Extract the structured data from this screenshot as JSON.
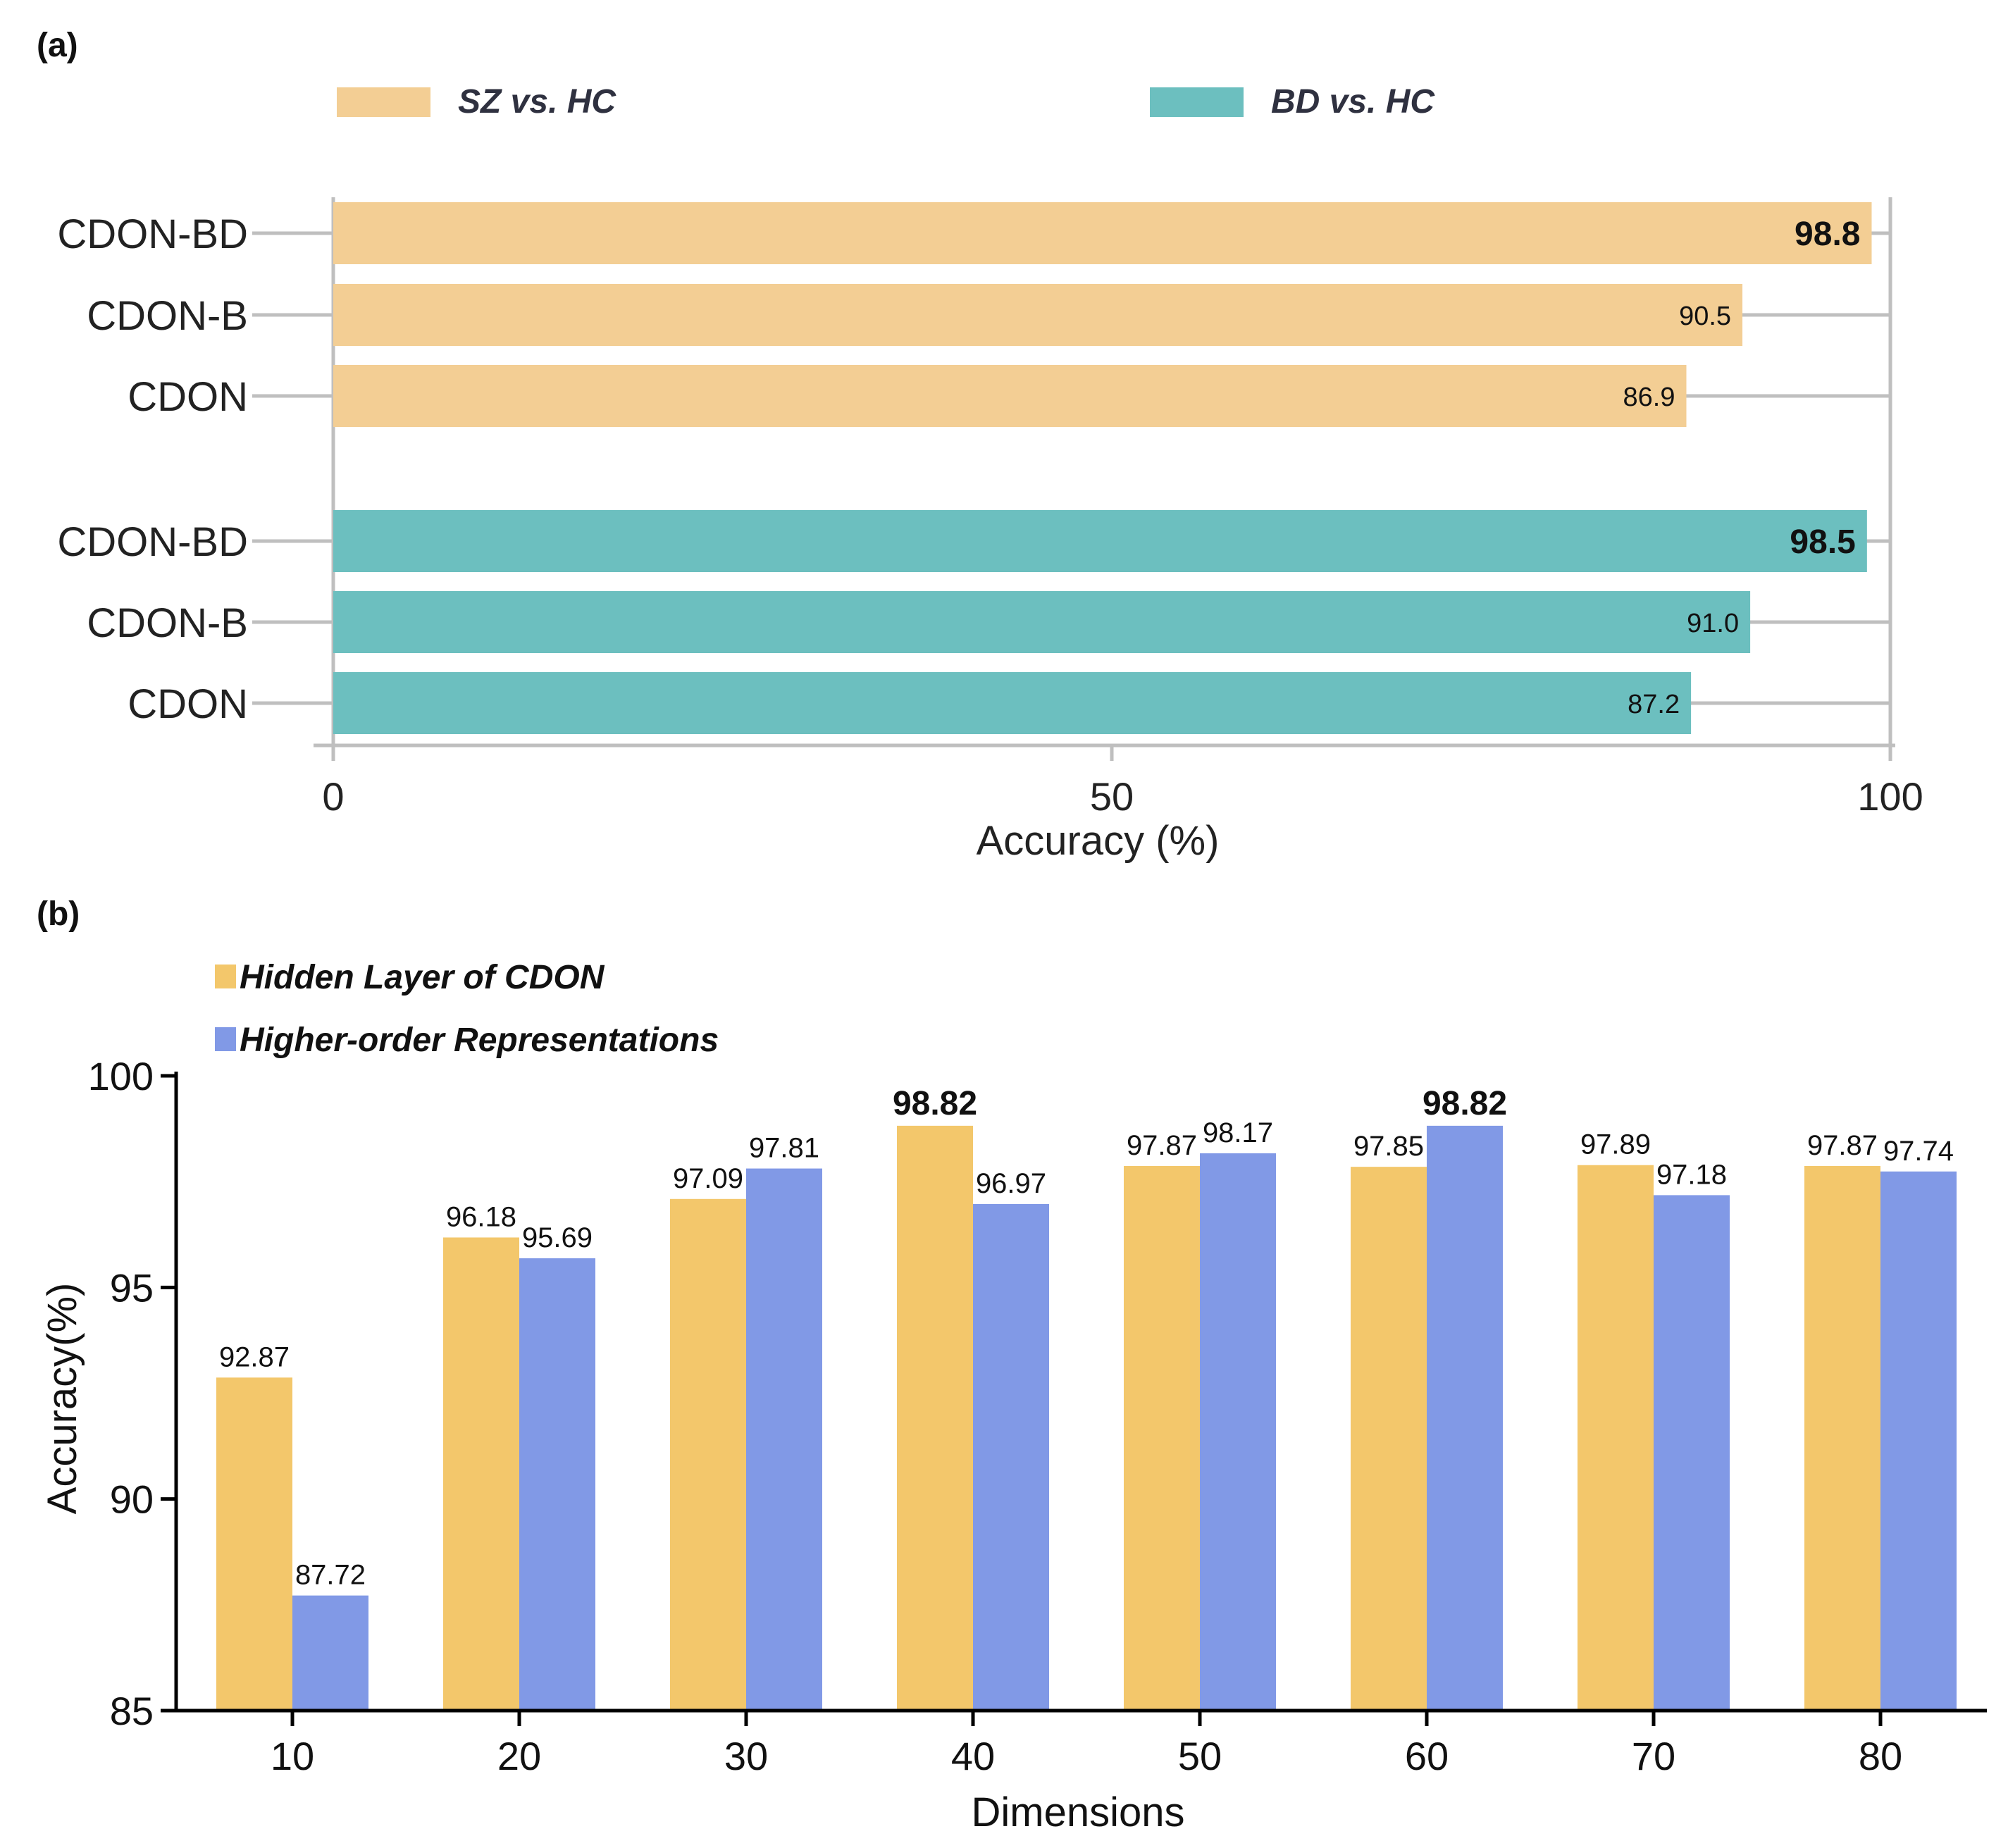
{
  "colors": {
    "sz": "#f3ce94",
    "bd": "#6cbfbf",
    "hidden": "#f3c76b",
    "higher": "#8199e6",
    "grid_a": "#bfbfbf",
    "axis": "#000000",
    "text": "#222222",
    "legend_text": "#2f3140"
  },
  "panel_a": {
    "panel_label": "(a)",
    "xlabel": "Accuracy (%)"
  },
  "panel_b": {
    "panel_label": "(b)",
    "xlabel": "Dimensions",
    "ylabel": "Accuracy(%)"
  },
  "chart_data": [
    {
      "type": "bar",
      "orientation": "horizontal",
      "title": "(a)",
      "xlabel": "Accuracy (%)",
      "xlim": [
        0,
        100
      ],
      "xticks": [
        0,
        50,
        100
      ],
      "xtick_labels": [
        "0",
        "50",
        "100"
      ],
      "grid": true,
      "legend": [
        {
          "name": "SZ vs. HC",
          "color": "#f3ce94"
        },
        {
          "name": "BD vs. HC",
          "color": "#6cbfbf"
        }
      ],
      "groups": [
        {
          "name": "SZ vs. HC",
          "color": "#f3ce94",
          "categories": [
            "CDON-BD",
            "CDON-B",
            "CDON"
          ],
          "values": [
            98.8,
            90.5,
            86.9
          ],
          "labels": [
            "98.8",
            "90.5",
            "86.9"
          ],
          "bold": [
            true,
            false,
            false
          ]
        },
        {
          "name": "BD vs. HC",
          "color": "#6cbfbf",
          "categories": [
            "CDON-BD",
            "CDON-B",
            "CDON"
          ],
          "values": [
            98.5,
            91.0,
            87.2
          ],
          "labels": [
            "98.5",
            "91.0",
            "87.2"
          ],
          "bold": [
            true,
            false,
            false
          ]
        }
      ]
    },
    {
      "type": "bar",
      "title": "(b)",
      "xlabel": "Dimensions",
      "ylabel": "Accuracy(%)",
      "ylim": [
        85,
        100
      ],
      "yticks": [
        85,
        90,
        95,
        100
      ],
      "ytick_labels": [
        "85",
        "90",
        "95",
        "100"
      ],
      "categories": [
        "10",
        "20",
        "30",
        "40",
        "50",
        "60",
        "70",
        "80"
      ],
      "grid": false,
      "legend_position": "top-left",
      "series": [
        {
          "name": "Hidden Layer of CDON",
          "color": "#f3c76b",
          "values": [
            92.87,
            96.18,
            97.09,
            98.82,
            97.87,
            97.85,
            97.89,
            97.87
          ],
          "labels": [
            "92.87",
            "96.18",
            "97.09",
            "98.82",
            "97.87",
            "97.85",
            "97.89",
            "97.87"
          ],
          "bold": [
            false,
            false,
            false,
            true,
            false,
            false,
            false,
            false
          ]
        },
        {
          "name": "Higher-order Representations",
          "color": "#8199e6",
          "values": [
            87.72,
            95.69,
            97.81,
            96.97,
            98.17,
            98.82,
            97.18,
            97.74
          ],
          "labels": [
            "87.72",
            "95.69",
            "97.81",
            "96.97",
            "98.17",
            "98.82",
            "97.18",
            "97.74"
          ],
          "bold": [
            false,
            false,
            false,
            false,
            false,
            true,
            false,
            false
          ]
        }
      ]
    }
  ]
}
